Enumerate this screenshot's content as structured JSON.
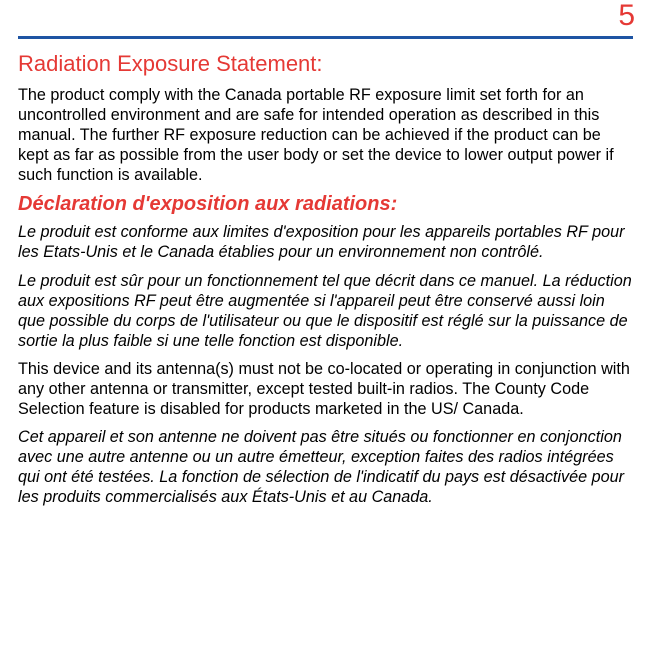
{
  "colors": {
    "accent": "#e53935",
    "rule": "#1e54a3",
    "text": "#000000",
    "bg": "#ffffff"
  },
  "typography": {
    "page_number_fontsize": 30,
    "h1_fontsize": 22,
    "h2_fontsize": 20,
    "body_fontsize": 16.2,
    "body_lineheight": 1.24,
    "font_family": "Arial, Helvetica, sans-serif"
  },
  "page_number": "5",
  "heading_en": "Radiation Exposure Statement:",
  "para1_en": "The product comply with the Canada portable RF exposure limit set forth for an uncontrolled environment and are safe for intended operation as described in this manual. The further RF exposure reduction can be achieved if the product can be kept as far as possible from the user body or set the device to lower output power if such function is available.",
  "heading_fr": "Déclaration d'exposition aux radiations:",
  "para2_fr": "Le produit est conforme aux limites d'exposition pour les appareils portables RF pour les Etats-Unis et le Canada établies pour un environnement non contrôlé.",
  "para3_fr": "Le produit est sûr pour un fonctionnement tel que décrit dans ce manuel. La réduction aux expositions RF peut être augmentée si l'appareil peut être conservé aussi loin que possible du corps de l'utilisateur ou que le dispositif est réglé sur la puissance de sortie la plus faible si une telle fonction est disponible.",
  "para4_en": "This device and its antenna(s) must not be co-located or operating in conjunction with any other antenna or transmitter, except tested built-in radios. The County Code Selection feature is disabled for products marketed in the US/ Canada.",
  "para5_fr": "Cet appareil et son antenne ne doivent pas être situés ou fonctionner en conjonction avec une autre antenne ou un autre émetteur, exception faites des radios intégrées qui ont été testées. La fonction de sélection de l'indicatif du pays est désactivée pour les produits commercialisés aux États-Unis et au Canada."
}
